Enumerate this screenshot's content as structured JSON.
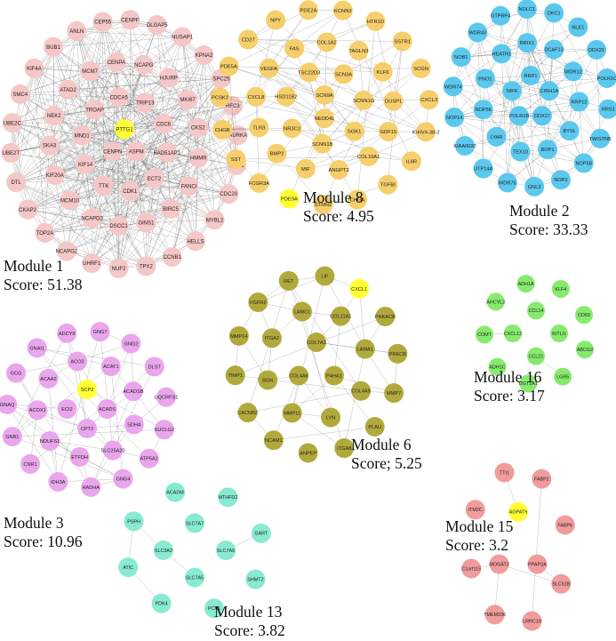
{
  "colors": {
    "edge": "#555555",
    "seed": "#ffff33",
    "label": "#222222"
  },
  "modules": [
    {
      "key": "m1",
      "title": "Module 1",
      "score": "Score: 51.38",
      "color": "#f5c7c7",
      "seed": "PTTG1",
      "nodes": [
        "PTTG1",
        "ASPM",
        "CENPN",
        "TRIP13",
        "CDC6",
        "RAD51AP1",
        "ECT2",
        "CDK1",
        "TTK",
        "KIF14",
        "MND1",
        "TROAP",
        "CDCA5",
        "MKI67",
        "CKS2",
        "HMMR",
        "FANCI",
        "BIRC5",
        "GINS1",
        "DSCC1",
        "NCAPD2",
        "MCM10",
        "KIF20A",
        "SKA3",
        "NEK2",
        "ATAD2",
        "MCM7",
        "CENPA",
        "NCAPG",
        "HJURP",
        "AURKA",
        "KIF2C",
        "CDC20",
        "MYBL2",
        "HELLS",
        "CCNB1",
        "TPX2",
        "NUF2",
        "UHRF1",
        "NCAPG2",
        "TOP2A",
        "CKAP2",
        "DTL",
        "UBE2T",
        "UBE2C",
        "SMC4",
        "KIF4A",
        "BUB1",
        "ANLN",
        "CEP55",
        "CENPF",
        "DLGAP5",
        "NUSAP1",
        "KPNA2",
        "SPC25",
        "RFC3"
      ]
    },
    {
      "key": "m8",
      "title": "Module 8",
      "score": "Score: 4.95",
      "color": "#f6cf6c",
      "seed": "PDE9A",
      "nodes": [
        "SCN9A",
        "NEDD4L",
        "SCN3A",
        "SCNN1G",
        "SGK1",
        "SCNN1B",
        "NR3C2",
        "HSD11B2",
        "TSC22D3",
        "KLF6",
        "DUSP1",
        "GDF15",
        "COL10A1",
        "ANGPT2",
        "MIF",
        "BMP2",
        "TLR3",
        "CXCL8",
        "VEGFA",
        "FAS",
        "COL1A2",
        "TAGLN3",
        "CXCL3",
        "IGHV4-38-2",
        "IL6R",
        "TGFBI",
        "CHGA",
        "STMN2",
        "PDE9A",
        "FCGR3A",
        "SST",
        "CHGB",
        "PCSK2",
        "PDE5A",
        "CD27",
        "NPY",
        "PDE2A",
        "KCNN3",
        "HTR1D",
        "SSTR1",
        "SCGN"
      ]
    },
    {
      "key": "m2",
      "title": "Module 2",
      "score": "Score: 33.33",
      "color": "#5bc8ee",
      "seed": null,
      "nodes": [
        "RRP1",
        "CIRH1A",
        "DDX27",
        "POLR1B",
        "NIFK",
        "DCAF13",
        "WDR12",
        "RRP12",
        "BYSL",
        "BOP1",
        "TEX10",
        "LYAR",
        "NOP56",
        "PNO1",
        "HEATR1",
        "BRIX1",
        "DDX21",
        "POLR1C",
        "RRS1",
        "TWISTNB",
        "NOP58",
        "NOP2",
        "GNL3",
        "WDR75",
        "UTP14A",
        "KIAA0020",
        "NOP14",
        "WDR74",
        "NOB1",
        "WDR43",
        "GTPBP4",
        "NOLC1",
        "DKC1",
        "NLE1"
      ]
    },
    {
      "key": "m3",
      "title": "Module 3",
      "score": "Score: 10.96",
      "color": "#e9a6ec",
      "seed": "SCP2",
      "nodes": [
        "SCP2",
        "ACADS",
        "CPT2",
        "ECI2",
        "ACAT1",
        "ACADSB",
        "SDHA",
        "SLC25A20",
        "ETFDH",
        "NDUFS1",
        "ACOX1",
        "ACAA2",
        "ACO2",
        "DLST",
        "UQCRFS1",
        "SUCLG2",
        "ATP5A1",
        "GNG4",
        "HADHA",
        "IDH3A",
        "CNR1",
        "GNB1",
        "GNAQ",
        "GCG",
        "GNAI1",
        "ADCY9",
        "GNG7",
        "GNG2"
      ]
    },
    {
      "key": "m6",
      "title": "Module 6",
      "score": "Score; 5.25",
      "color": "#b2a93c",
      "seed": "CXCL1",
      "nodes": [
        "COL7A1",
        "P4HA1",
        "COL4A6",
        "COL11A1",
        "LAMA1",
        "COL4A5",
        "LYN",
        "MMP11",
        "BGN",
        "ITGA2",
        "LAMC1",
        "PRKACB",
        "PRKCB",
        "MMP7",
        "PLAU",
        "ITGA8",
        "ANPEP",
        "NCAM1",
        "CACNB2",
        "TIMP1",
        "MMP14",
        "FGFR2",
        "RET",
        "LIF",
        "CXCL1"
      ]
    },
    {
      "key": "m16",
      "title": "Module 16",
      "score": "Score: 3.17",
      "color": "#86ea6e",
      "seed": null,
      "nodes": [
        "CCL14",
        "KITLG",
        "CCL21",
        "CXCL12",
        "KLF4",
        "CD69",
        "ABCG2",
        "LGR5",
        "UGT1A1",
        "ADH1C",
        "COMT",
        "AHCYL2",
        "ADH1A"
      ]
    },
    {
      "key": "m13",
      "title": "Module 13",
      "score": "Score: 3.82",
      "color": "#88ead2",
      "seed": null,
      "nodes": [
        "SLC7A7",
        "SLC7A6",
        "SLC7A5",
        "SLC3A2",
        "MTHFD2",
        "GART",
        "SHMT2",
        "PCK1",
        "PDK4",
        "ATIC",
        "PSPH",
        "ACADM"
      ]
    },
    {
      "key": "m15",
      "title": "Module 15",
      "score": "Score: 3.2",
      "color": "#f19c9c",
      "seed": "AGPAT9",
      "nodes": [
        "AGPAT9",
        "PPAP2A",
        "MOGAT2",
        "FABP2",
        "FABP6",
        "SLC51B",
        "LRRC19",
        "TMEM236",
        "C1orf115",
        "ITM2C",
        "TTI1"
      ]
    }
  ]
}
